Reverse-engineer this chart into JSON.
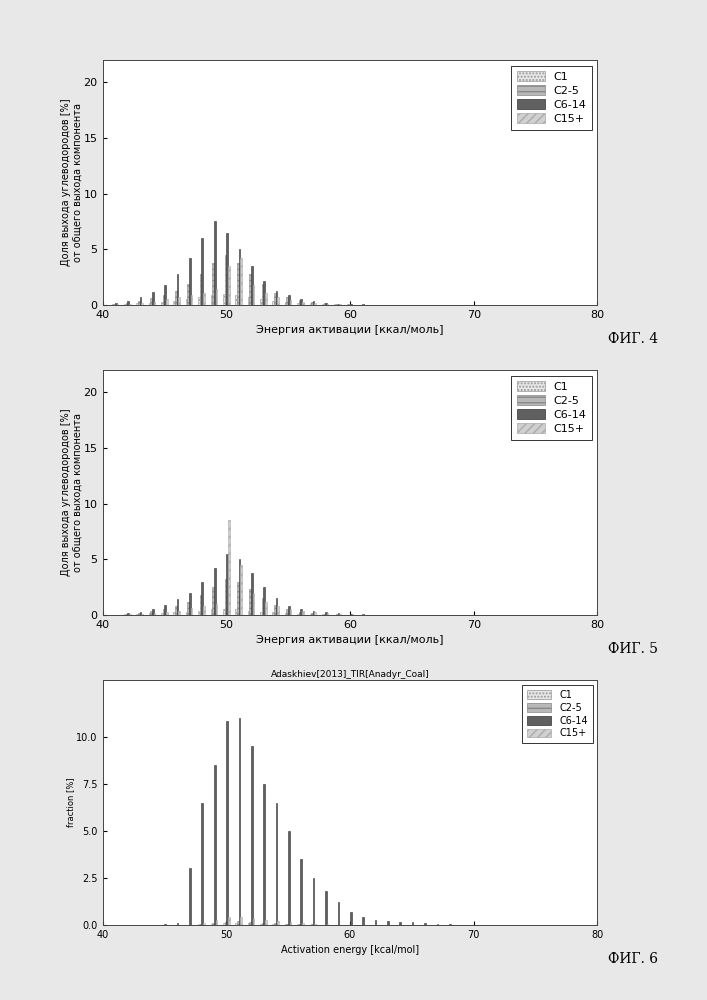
{
  "fig4": {
    "xlabel": "Энергия активации [ккал/моль]",
    "ylabel": "Доля выхода углеводородов [%]\nот общего выхода компонента",
    "fig_label": "ФИГ. 4",
    "xlim": [
      40.0,
      80.0
    ],
    "ylim": [
      0.0,
      22.0
    ],
    "yticks": [
      0.0,
      5.0,
      10.0,
      15.0,
      20.0
    ],
    "xticks": [
      40.0,
      50.0,
      60.0,
      70.0,
      80.0
    ],
    "energies": [
      41,
      42,
      43,
      44,
      45,
      46,
      47,
      48,
      49,
      50,
      51,
      52,
      53,
      54,
      55,
      56,
      57,
      58,
      59,
      60,
      61,
      62,
      63,
      64,
      65
    ],
    "C1": [
      0.05,
      0.1,
      0.15,
      0.2,
      0.3,
      0.4,
      0.5,
      0.7,
      0.9,
      1.0,
      0.9,
      0.7,
      0.5,
      0.4,
      0.3,
      0.2,
      0.15,
      0.1,
      0.08,
      0.05,
      0.04,
      0.03,
      0.02,
      0.01,
      0.01
    ],
    "C25": [
      0.1,
      0.2,
      0.35,
      0.6,
      0.9,
      1.3,
      1.9,
      2.8,
      3.8,
      4.5,
      3.8,
      2.8,
      1.9,
      1.1,
      0.7,
      0.45,
      0.3,
      0.18,
      0.1,
      0.06,
      0.04,
      0.03,
      0.02,
      0.01,
      0.0
    ],
    "C614": [
      0.2,
      0.4,
      0.7,
      1.2,
      1.8,
      2.8,
      4.2,
      6.0,
      7.5,
      6.5,
      5.0,
      3.5,
      2.2,
      1.3,
      0.9,
      0.55,
      0.35,
      0.22,
      0.13,
      0.08,
      0.05,
      0.03,
      0.02,
      0.01,
      0.01
    ],
    "C15p": [
      0.05,
      0.1,
      0.2,
      0.3,
      0.5,
      0.7,
      0.9,
      1.1,
      1.4,
      3.5,
      4.2,
      1.8,
      1.1,
      0.7,
      0.45,
      0.28,
      0.18,
      0.1,
      0.06,
      0.04,
      0.02,
      0.01,
      0.01,
      0.0,
      0.0
    ]
  },
  "fig5": {
    "xlabel": "Энергия активации [ккал/моль]",
    "ylabel": "Доля выхода углеводородов [%]\nот общего выхода компонента",
    "fig_label": "ФИГ. 5",
    "xlim": [
      40.0,
      80.0
    ],
    "ylim": [
      0.0,
      22.0
    ],
    "yticks": [
      0.0,
      5.0,
      10.0,
      15.0,
      20.0
    ],
    "xticks": [
      40.0,
      50.0,
      60.0,
      70.0,
      80.0
    ],
    "energies": [
      42,
      43,
      44,
      45,
      46,
      47,
      48,
      49,
      50,
      51,
      52,
      53,
      54,
      55,
      56,
      57,
      58,
      59,
      60,
      61,
      62,
      63,
      64,
      65,
      66,
      67
    ],
    "C1": [
      0.05,
      0.1,
      0.15,
      0.2,
      0.25,
      0.3,
      0.4,
      0.5,
      0.55,
      0.5,
      0.4,
      0.3,
      0.25,
      0.18,
      0.12,
      0.08,
      0.05,
      0.04,
      0.03,
      0.02,
      0.01,
      0.01,
      0.01,
      0.01,
      0.0,
      0.0
    ],
    "C25": [
      0.1,
      0.2,
      0.35,
      0.55,
      0.8,
      1.2,
      1.8,
      2.5,
      3.2,
      3.0,
      2.3,
      1.5,
      0.9,
      0.5,
      0.3,
      0.2,
      0.12,
      0.07,
      0.04,
      0.03,
      0.02,
      0.01,
      0.01,
      0.01,
      0.0,
      0.0
    ],
    "C614": [
      0.15,
      0.3,
      0.55,
      0.9,
      1.4,
      2.0,
      3.0,
      4.2,
      5.5,
      5.0,
      3.8,
      2.5,
      1.5,
      0.85,
      0.55,
      0.38,
      0.25,
      0.15,
      0.09,
      0.05,
      0.03,
      0.02,
      0.01,
      0.01,
      0.0,
      0.0
    ],
    "C15p": [
      0.05,
      0.1,
      0.15,
      0.25,
      0.4,
      0.6,
      0.8,
      1.0,
      8.5,
      4.5,
      2.0,
      1.2,
      0.8,
      0.55,
      0.38,
      0.26,
      0.17,
      0.1,
      0.06,
      0.04,
      0.02,
      0.01,
      0.01,
      0.01,
      0.0,
      0.0
    ]
  },
  "fig6": {
    "title": "Adaskhiev[2013]_TIR[Anadyr_Coal]",
    "xlabel": "Activation energy [kcal/mol]",
    "ylabel": "fraction [%]",
    "fig_label": "ФИГ. 6",
    "xlim": [
      40.0,
      80.0
    ],
    "ylim": [
      0.0,
      13.0
    ],
    "yticks": [
      0.0,
      2.5,
      5.0,
      7.5,
      10.0
    ],
    "xticks": [
      40.0,
      50.0,
      60.0,
      70.0,
      80.0
    ],
    "energies": [
      45,
      46,
      47,
      48,
      49,
      50,
      51,
      52,
      53,
      54,
      55,
      56,
      57,
      58,
      59,
      60,
      61,
      62,
      63,
      64,
      65,
      66,
      67,
      68
    ],
    "C1": [
      0.0,
      0.0,
      0.0,
      0.03,
      0.06,
      0.08,
      0.1,
      0.09,
      0.07,
      0.06,
      0.04,
      0.03,
      0.02,
      0.01,
      0.01,
      0.0,
      0.0,
      0.0,
      0.0,
      0.0,
      0.0,
      0.0,
      0.0,
      0.0
    ],
    "C25": [
      0.0,
      0.0,
      0.0,
      0.05,
      0.12,
      0.18,
      0.2,
      0.17,
      0.13,
      0.1,
      0.07,
      0.05,
      0.03,
      0.02,
      0.01,
      0.0,
      0.0,
      0.0,
      0.0,
      0.0,
      0.0,
      0.0,
      0.0,
      0.0
    ],
    "C614": [
      0.05,
      0.1,
      3.0,
      6.5,
      8.5,
      10.8,
      11.0,
      9.5,
      7.5,
      6.5,
      5.0,
      3.5,
      2.5,
      1.8,
      1.2,
      0.7,
      0.4,
      0.25,
      0.2,
      0.18,
      0.15,
      0.1,
      0.05,
      0.03
    ],
    "C15p": [
      0.0,
      0.0,
      0.0,
      0.1,
      0.25,
      0.4,
      0.45,
      0.38,
      0.28,
      0.2,
      0.14,
      0.09,
      0.06,
      0.04,
      0.02,
      0.01,
      0.0,
      0.0,
      0.0,
      0.0,
      0.0,
      0.0,
      0.0,
      0.0
    ]
  },
  "colors": {
    "C1": "#e8e8e8",
    "C25": "#b8b8b8",
    "C614": "#606060",
    "C15p": "#d0d0d0"
  },
  "legend_labels": [
    "C1",
    "C2-5",
    "C6-14",
    "C15+"
  ],
  "bar_width": 0.55
}
